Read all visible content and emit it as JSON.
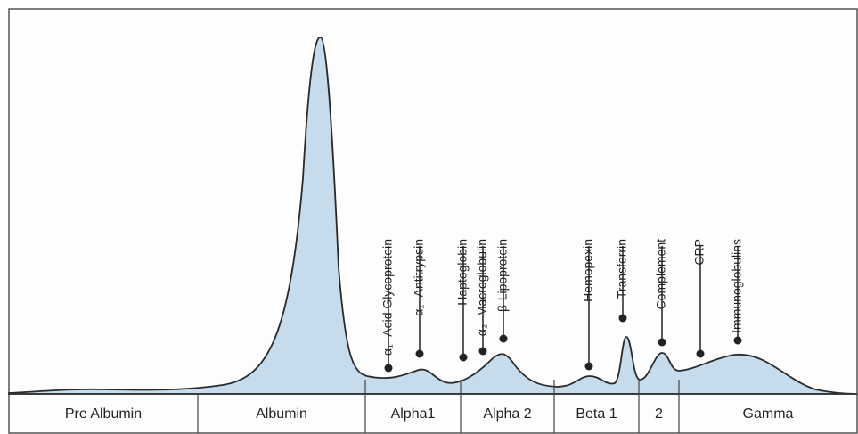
{
  "bands": [
    "Pre Albumin",
    "Albumin",
    "Alpha1",
    "Alpha 2",
    "Beta 1",
    "2",
    "Gamma"
  ],
  "proteins": [
    "α₁- Acid Glycoprotein",
    "α₁- Antitrypsin",
    "Haptoglobin",
    "α₂ -Macroglobulin",
    "β-Lipoprotein",
    "Hemopexin",
    "Transferrin",
    "Complement",
    "CRP",
    "Immunoglobulins"
  ]
}
